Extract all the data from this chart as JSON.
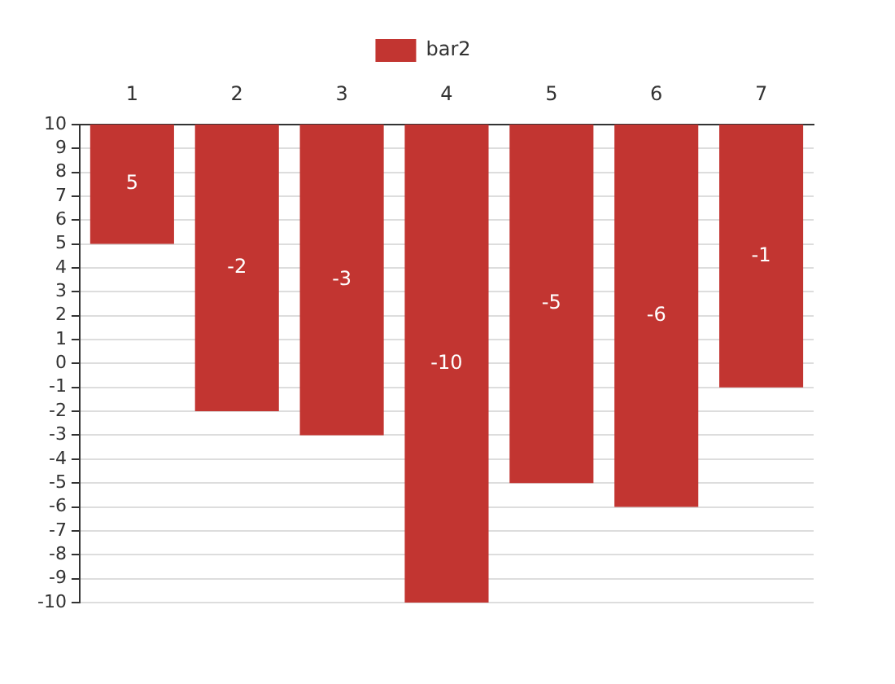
{
  "chart_data": {
    "type": "bar",
    "categories": [
      "1",
      "2",
      "3",
      "4",
      "5",
      "6",
      "7"
    ],
    "series": [
      {
        "name": "bar2",
        "color": "#c23531",
        "values": [
          -5,
          -12,
          -13,
          -20,
          -15,
          -16,
          -11
        ],
        "base": [
          10,
          10,
          10,
          10,
          10,
          10,
          10
        ],
        "value_labels": [
          "5",
          "-2",
          "-3",
          "-10",
          "-5",
          "-6",
          "-1"
        ]
      }
    ],
    "ylim": [
      -10,
      10
    ],
    "yticks": [
      10,
      9,
      8,
      7,
      6,
      5,
      4,
      3,
      2,
      1,
      0,
      -1,
      -2,
      -3,
      -4,
      -5,
      -6,
      -7,
      -8,
      -9,
      -10
    ],
    "grid": "y",
    "legend": "top"
  }
}
